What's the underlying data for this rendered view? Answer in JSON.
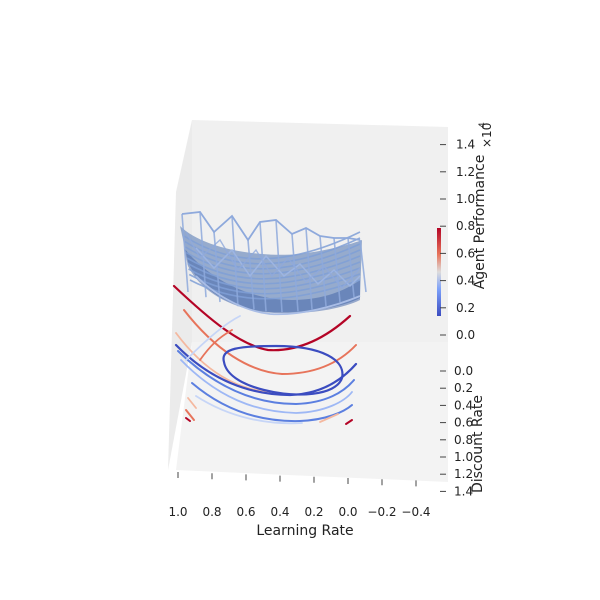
{
  "chart_data": {
    "type": "surface-3d",
    "xlabel": "Learning Rate",
    "ylabel": "Discount Rate",
    "zlabel": "Agent Performance",
    "z_scale_label": "×10",
    "z_scale_exp": "4",
    "x_ticks": [
      "1.0",
      "0.8",
      "0.6",
      "0.4",
      "0.2",
      "0.0",
      "−0.2",
      "−0.4"
    ],
    "y_ticks": [
      "0.0",
      "0.2",
      "0.4",
      "0.6",
      "0.8",
      "1.0",
      "1.2",
      "1.4"
    ],
    "z_ticks": [
      "0.0",
      "0.2",
      "0.4",
      "0.6",
      "0.8",
      "1.0",
      "1.2",
      "1.4"
    ],
    "z_range": [
      0,
      1.4
    ],
    "surface_color": "#4c72b0",
    "colormap": "coolwarm",
    "colormap_low": "#3b4cc0",
    "colormap_high": "#b40426",
    "contour_levels": 10,
    "grid": false
  }
}
